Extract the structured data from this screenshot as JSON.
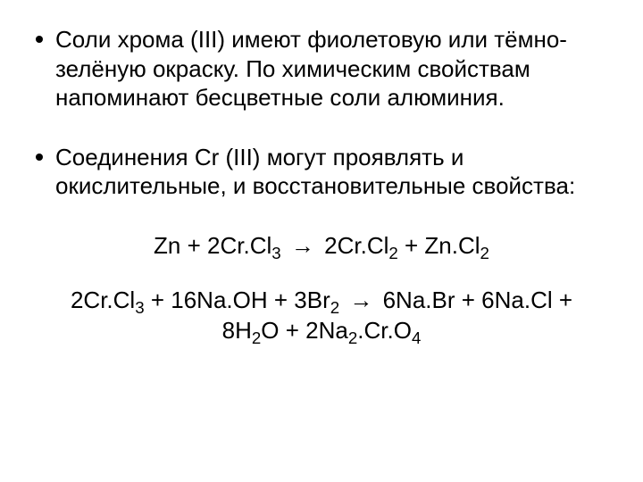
{
  "page": {
    "background_color": "#ffffff",
    "text_color": "#000000",
    "font_family": "Arial",
    "base_fontsize": 26
  },
  "bullets": [
    {
      "text": "Соли хрома (III) имеют фиолетовую или тёмно-зелёную окраску. По химическим свойствам напоминают бесцветные соли алюминия."
    },
    {
      "text": "Соединения Cr (III) могут проявлять и окислительные, и восстановительные свойства:"
    }
  ],
  "equations": [
    {
      "prefix": "Zn + 2Cr.Cl",
      "sub1": "3",
      "mid1": " ",
      "arrow": "→",
      "mid2": " 2Cr.Cl",
      "sub2": "2",
      "mid3": " + Zn.Cl",
      "sub3": "2",
      "suffix": ""
    },
    {
      "line1_a": "2Cr.Cl",
      "line1_sub1": "3",
      "line1_b": " + 16Na.OH + 3Br",
      "line1_sub2": "2",
      "line1_c": " ",
      "arrow": "→",
      "line1_d": " 6Na.Br + 6Na.Cl +",
      "line2_a": "8H",
      "line2_sub1": "2",
      "line2_b": "O + 2Na",
      "line2_sub2": "2",
      "line2_c": ".Cr.O",
      "line2_sub3": "4",
      "line2_d": ""
    }
  ]
}
